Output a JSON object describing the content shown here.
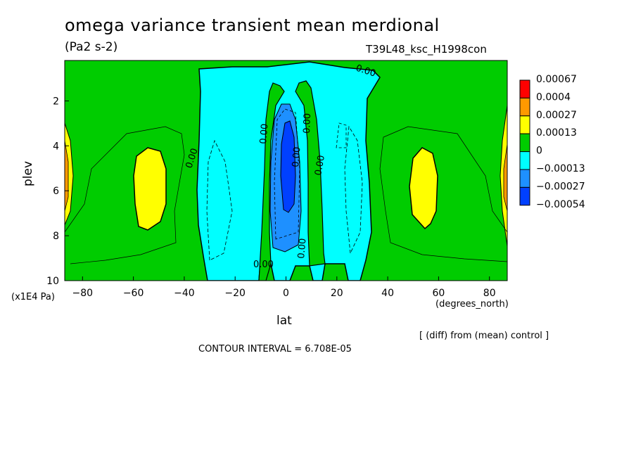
{
  "chart_data": {
    "type": "contour",
    "title": "omega variance transient mean merdional",
    "units_label": "(Pa2 s-2)",
    "run_id": "T39L48_ksc_H1998con",
    "xlabel": "lat",
    "x_units": "(degrees_north)",
    "ylabel": "plev",
    "y_units": "(x1E4 Pa)",
    "x_ticks": [
      "-80",
      "-60",
      "-40",
      "-20",
      "0",
      "20",
      "40",
      "60",
      "80"
    ],
    "y_ticks": [
      "2",
      "4",
      "6",
      "8",
      "10"
    ],
    "xlim": [
      -87,
      87
    ],
    "ylim": [
      10,
      0.2
    ],
    "diff_note": "[ (diff) from (mean) control ]",
    "contour_interval": "CONTOUR INTERVAL = 6.708E-05",
    "colorbar": {
      "labels": [
        "0.00067",
        "0.0004",
        "0.00027",
        "0.00013",
        "0",
        "-0.00013",
        "-0.00027",
        "-0.00054"
      ],
      "colors": [
        "#ff0000",
        "#ff9900",
        "#ffff00",
        "#00cc00",
        "#00ffff",
        "#1e90ff",
        "#0040ff"
      ]
    },
    "contour_labels": [
      "0.00",
      "0.00",
      "0.00",
      "0.00",
      "0.00",
      "0.00",
      "0.00",
      "0.00"
    ],
    "regions": [
      {
        "name": "background",
        "level": "0 to 0.00013",
        "color": "#00cc00"
      },
      {
        "name": "central-negative",
        "level": "-0.00013 to 0",
        "color": "#00ffff",
        "lat_range": [
          -35,
          35
        ]
      },
      {
        "name": "core-negative",
        "level": "-0.00054 to -0.00027",
        "color": "#0040ff",
        "lat_center": 0,
        "plev_center": 5
      },
      {
        "name": "south-maximum",
        "level": "0.00013 to 0.00027",
        "color": "#ffff00",
        "lat_center": -57,
        "plev_center": 5.5
      },
      {
        "name": "north-maximum",
        "level": "0.00013 to 0.00027",
        "color": "#ffff00",
        "lat_center": 55,
        "plev_center": 6
      }
    ]
  }
}
